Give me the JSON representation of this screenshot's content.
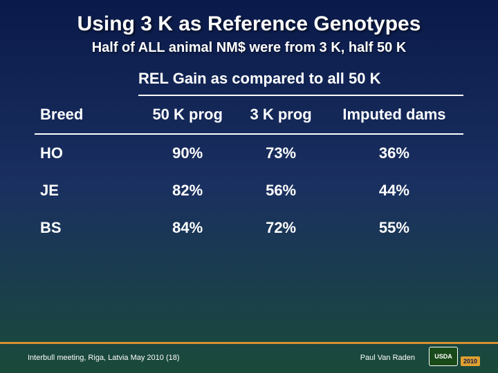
{
  "title": "Using 3 K as Reference Genotypes",
  "subtitle": "Half of ALL animal NM$ were from 3 K, half 50 K",
  "table": {
    "caption": "REL Gain as compared to all 50 K",
    "columns": [
      "Breed",
      "50 K prog",
      "3 K prog",
      "Imputed dams"
    ],
    "rows": [
      [
        "HO",
        "90%",
        "73%",
        "36%"
      ],
      [
        "JE",
        "82%",
        "56%",
        "44%"
      ],
      [
        "BS",
        "84%",
        "72%",
        "55%"
      ]
    ]
  },
  "footer": {
    "left": "Interbull meeting, Riga, Latvia  May 2010 (18)",
    "right": "Paul Van Raden",
    "logo": "USDA",
    "year": "2010"
  },
  "style": {
    "title_fontsize": 30,
    "subtitle_fontsize": 20,
    "table_fontsize": 22,
    "footer_fontsize": 11,
    "text_color": "#ffffff",
    "accent_color": "#d89030",
    "bg_top": "#0a1a4a",
    "bg_mid": "#1a3060",
    "bg_bot": "#1a4a3a"
  }
}
